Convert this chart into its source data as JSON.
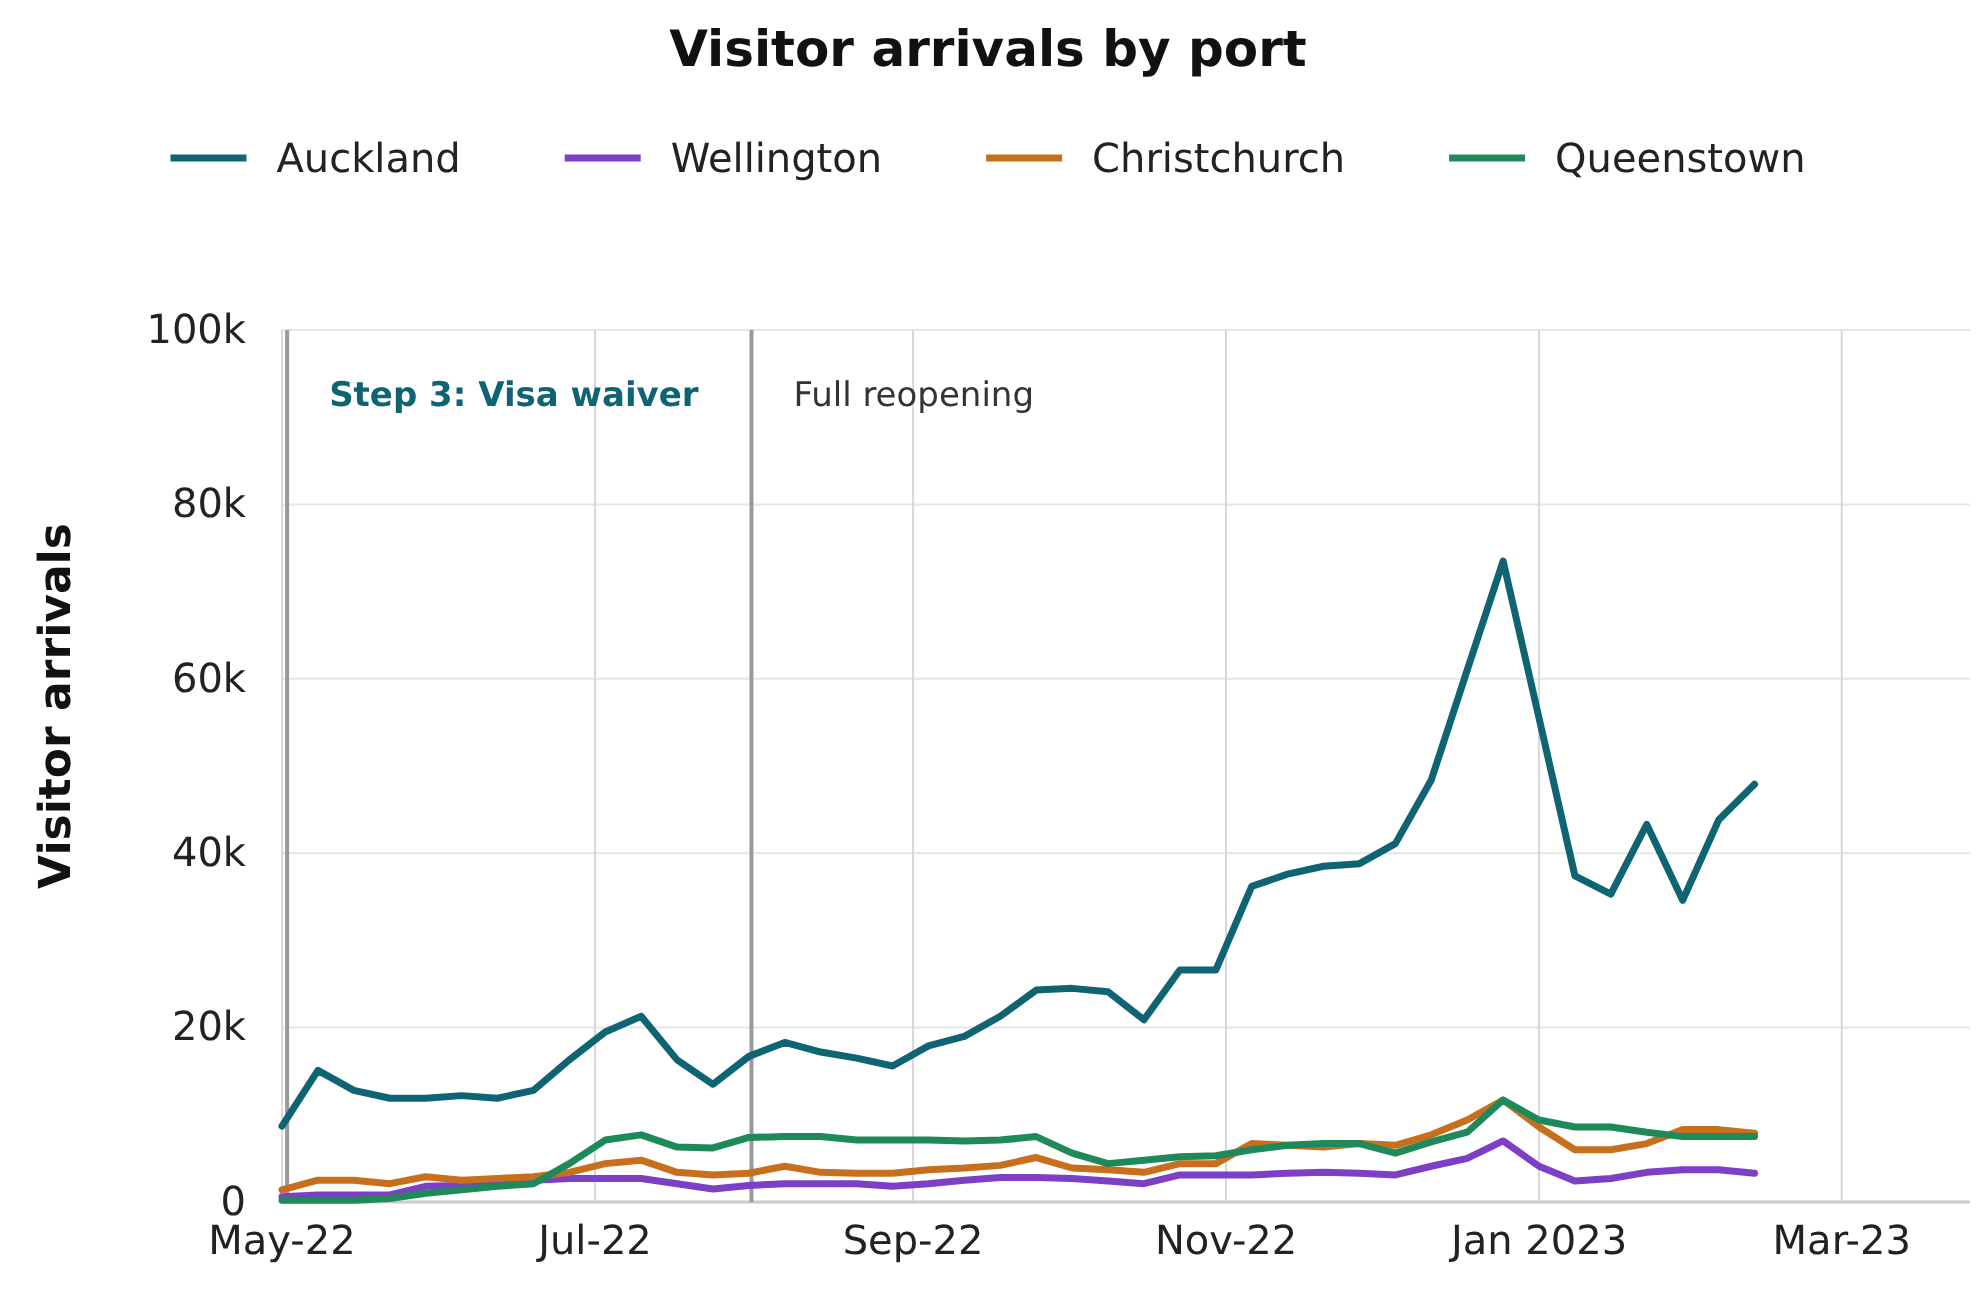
{
  "chart_data": {
    "type": "line",
    "title": "Visitor arrivals by port",
    "ylabel": "Visitor arrivals",
    "x": [
      "2022-05-01",
      "2022-05-08",
      "2022-05-15",
      "2022-05-22",
      "2022-05-29",
      "2022-06-05",
      "2022-06-12",
      "2022-06-19",
      "2022-06-26",
      "2022-07-03",
      "2022-07-10",
      "2022-07-17",
      "2022-07-24",
      "2022-07-31",
      "2022-08-07",
      "2022-08-14",
      "2022-08-21",
      "2022-08-28",
      "2022-09-04",
      "2022-09-11",
      "2022-09-18",
      "2022-09-25",
      "2022-10-02",
      "2022-10-09",
      "2022-10-16",
      "2022-10-23",
      "2022-10-30",
      "2022-11-06",
      "2022-11-13",
      "2022-11-20",
      "2022-11-27",
      "2022-12-04",
      "2022-12-11",
      "2022-12-18",
      "2022-12-25",
      "2023-01-01",
      "2023-01-08",
      "2023-01-15",
      "2023-01-22",
      "2023-01-29",
      "2023-02-05",
      "2023-02-12"
    ],
    "series": [
      {
        "name": "Auckland",
        "color": "#0f6474",
        "values": [
          8.7,
          15.1,
          12.8,
          11.9,
          11.9,
          12.2,
          11.9,
          12.8,
          16.3,
          19.5,
          21.3,
          16.3,
          13.5,
          16.7,
          18.3,
          17.2,
          16.5,
          15.6,
          17.9,
          19.0,
          21.3,
          24.3,
          24.5,
          24.1,
          20.9,
          26.6,
          26.6,
          36.2,
          37.6,
          38.5,
          38.8,
          41.1,
          48.4,
          61.0,
          73.5,
          55.5,
          37.4,
          35.3,
          43.3,
          34.6,
          43.8,
          47.9
        ]
      },
      {
        "name": "Wellington",
        "color": "#7c3fc6",
        "values": [
          0.6,
          0.8,
          0.8,
          0.8,
          1.8,
          1.9,
          2.1,
          2.5,
          2.7,
          2.7,
          2.7,
          2.1,
          1.5,
          1.9,
          2.1,
          2.1,
          2.1,
          1.8,
          2.1,
          2.5,
          2.8,
          2.8,
          2.7,
          2.4,
          2.1,
          3.1,
          3.1,
          3.1,
          3.3,
          3.4,
          3.3,
          3.1,
          4.1,
          5.0,
          7.0,
          4.1,
          2.4,
          2.7,
          3.4,
          3.7,
          3.7,
          3.3
        ]
      },
      {
        "name": "Christchurch",
        "color": "#c86f1e",
        "values": [
          1.4,
          2.5,
          2.5,
          2.1,
          2.9,
          2.5,
          2.7,
          2.9,
          3.4,
          4.4,
          4.8,
          3.4,
          3.1,
          3.3,
          4.1,
          3.4,
          3.3,
          3.3,
          3.7,
          3.9,
          4.2,
          5.1,
          3.9,
          3.7,
          3.4,
          4.4,
          4.4,
          6.7,
          6.5,
          6.3,
          6.7,
          6.5,
          7.7,
          9.4,
          11.7,
          8.6,
          6.0,
          6.0,
          6.7,
          8.3,
          8.3,
          7.9
        ]
      },
      {
        "name": "Queenstown",
        "color": "#1e8a5a",
        "values": [
          0.2,
          0.2,
          0.2,
          0.4,
          1.0,
          1.4,
          1.8,
          2.1,
          4.4,
          7.1,
          7.7,
          6.3,
          6.2,
          7.4,
          7.5,
          7.5,
          7.1,
          7.1,
          7.1,
          7.0,
          7.1,
          7.5,
          5.6,
          4.4,
          4.8,
          5.2,
          5.3,
          6.0,
          6.5,
          6.7,
          6.7,
          5.6,
          6.9,
          8.0,
          11.7,
          9.4,
          8.6,
          8.6,
          8.0,
          7.5,
          7.5,
          7.5
        ]
      }
    ],
    "xlim": [
      "2022-05-01",
      "2023-03-26"
    ],
    "xticks": [
      {
        "value": "2022-05-01",
        "label": "May-22"
      },
      {
        "value": "2022-07-01",
        "label": "Jul-22"
      },
      {
        "value": "2022-09-01",
        "label": "Sep-22"
      },
      {
        "value": "2022-11-01",
        "label": "Nov-22"
      },
      {
        "value": "2023-01-01",
        "label": "Jan 2023"
      },
      {
        "value": "2023-03-01",
        "label": "Mar-23"
      }
    ],
    "ylim": [
      0,
      100
    ],
    "yticks": [
      {
        "value": 0,
        "label": "0"
      },
      {
        "value": 20,
        "label": "20k"
      },
      {
        "value": 40,
        "label": "40k"
      },
      {
        "value": 60,
        "label": "60k"
      },
      {
        "value": 80,
        "label": "80k"
      },
      {
        "value": 100,
        "label": "100k"
      }
    ],
    "ref_lines": [
      {
        "axis": "x",
        "value": "2022-05-02T00:00",
        "label": "Step 3: Visa waiver",
        "color": "#999999"
      },
      {
        "axis": "x",
        "value": "2022-07-31T12:00",
        "label": "Full reopening",
        "color": "#999999"
      }
    ],
    "grid": true,
    "legend": "top",
    "line_style": "solid"
  }
}
